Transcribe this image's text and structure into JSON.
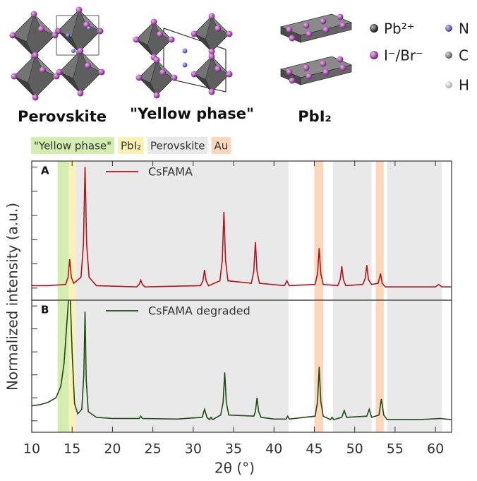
{
  "structures": [
    "Perovskite",
    "\"Yellow phase\"",
    "PbI₂"
  ],
  "key": [
    "Pb²⁺",
    "I⁻/Br⁻",
    "N",
    "C",
    "H"
  ],
  "chart_data": [
    {
      "type": "line",
      "label": "A",
      "ylabel": "Normalized intensity (a.u.)",
      "bands": [
        {
          "name": "\"Yellow phase\"",
          "color": "#d3ecb0",
          "ranges": [
            [
              13.2,
              14.6
            ]
          ]
        },
        {
          "name": "PbI₂",
          "color": "#fbf1b6",
          "ranges": [
            [
              14.6,
              15.4
            ]
          ]
        },
        {
          "name": "Perovskite",
          "color": "#e9e9e9",
          "ranges": [
            [
              15.4,
              41.8
            ],
            [
              47.3,
              52.1
            ],
            [
              54.0,
              60.8
            ]
          ]
        },
        {
          "name": "Au",
          "color": "#fdd7bb",
          "ranges": [
            [
              45.0,
              46.1
            ],
            [
              52.6,
              53.6
            ]
          ]
        }
      ],
      "x": [
        10,
        12,
        14.2,
        14.5,
        14.7,
        14.9,
        15.2,
        16.1,
        16.4,
        16.6,
        16.8,
        17.1,
        18,
        23,
        23.3,
        23.5,
        23.7,
        24,
        30.9,
        31.2,
        31.4,
        31.6,
        31.9,
        33.3,
        33.6,
        33.8,
        34.0,
        34.3,
        37.2,
        37.5,
        37.7,
        37.9,
        38.2,
        41.3,
        41.6,
        41.9,
        45.1,
        45.4,
        45.6,
        45.8,
        46.1,
        47.9,
        48.2,
        48.4,
        48.6,
        48.9,
        51.0,
        51.3,
        51.5,
        51.7,
        52.1,
        52.9,
        53.2,
        53.4,
        53.8,
        60.0,
        60.4,
        60.8,
        62
      ],
      "series": [
        {
          "name": "CsFAMA",
          "color": "#b5121b",
          "values": [
            0.02,
            0.02,
            0.03,
            0.09,
            0.24,
            0.09,
            0.04,
            0.09,
            0.36,
            1.0,
            0.36,
            0.09,
            0.02,
            0.01,
            0.03,
            0.065,
            0.03,
            0.01,
            0.02,
            0.06,
            0.15,
            0.06,
            0.02,
            0.06,
            0.23,
            0.63,
            0.23,
            0.06,
            0.04,
            0.14,
            0.38,
            0.14,
            0.04,
            0.02,
            0.06,
            0.02,
            0.03,
            0.12,
            0.33,
            0.12,
            0.03,
            0.02,
            0.07,
            0.18,
            0.07,
            0.02,
            0.03,
            0.08,
            0.19,
            0.07,
            0.03,
            0.04,
            0.12,
            0.04,
            0.01,
            0.01,
            0.03,
            0.01,
            0.01
          ]
        }
      ],
      "xlim": [
        10,
        62
      ],
      "xticks": [
        10,
        15,
        20,
        25,
        30,
        35,
        40,
        45,
        50,
        55,
        60
      ],
      "ylim": [
        -0.1,
        1.05
      ],
      "yticks": [
        0,
        0.2,
        0.4,
        0.6,
        0.8,
        1.0
      ]
    },
    {
      "type": "line",
      "label": "B",
      "xlabel": "2θ (°)",
      "x": [
        10,
        11,
        12,
        13,
        13.6,
        14.0,
        14.4,
        14.7,
        15.0,
        15.3,
        15.7,
        16.2,
        16.45,
        16.6,
        16.75,
        17.0,
        18,
        20,
        23.3,
        23.5,
        23.7,
        28,
        31.1,
        31.4,
        31.7,
        32.0,
        32.2,
        32.4,
        33.4,
        33.7,
        33.9,
        34.1,
        34.4,
        37.5,
        37.7,
        37.9,
        38.1,
        38.4,
        40,
        41.5,
        41.7,
        41.9,
        45.1,
        45.4,
        45.6,
        45.8,
        46.1,
        47.0,
        47.2,
        47.4,
        48.4,
        48.7,
        49.0,
        51.5,
        51.8,
        52.1,
        53.0,
        53.3,
        53.6,
        54.0,
        58,
        60.6,
        62
      ],
      "series": [
        {
          "name": "CsFAMA degraded",
          "color": "#1d4d14",
          "values": [
            0.13,
            0.14,
            0.16,
            0.2,
            0.3,
            0.5,
            0.9,
            1.2,
            0.6,
            0.15,
            0.06,
            0.1,
            0.4,
            0.95,
            0.35,
            0.08,
            0.03,
            0.02,
            0.02,
            0.04,
            0.02,
            0.015,
            0.03,
            0.1,
            0.03,
            0.01,
            0.03,
            0.01,
            0.05,
            0.16,
            0.42,
            0.16,
            0.05,
            0.04,
            0.08,
            0.2,
            0.08,
            0.03,
            0.015,
            0.015,
            0.04,
            0.015,
            0.04,
            0.17,
            0.47,
            0.17,
            0.04,
            0.01,
            0.03,
            0.01,
            0.03,
            0.09,
            0.03,
            0.04,
            0.1,
            0.03,
            0.05,
            0.19,
            0.05,
            0.01,
            0.01,
            0.02,
            0.01
          ]
        }
      ],
      "xlim": [
        10,
        62
      ],
      "xticks": [
        10,
        15,
        20,
        25,
        30,
        35,
        40,
        45,
        50,
        55,
        60
      ],
      "ylim": [
        -0.1,
        1.05
      ],
      "yticks": [
        0,
        0.2,
        0.4,
        0.6,
        0.8,
        1.0
      ]
    }
  ]
}
